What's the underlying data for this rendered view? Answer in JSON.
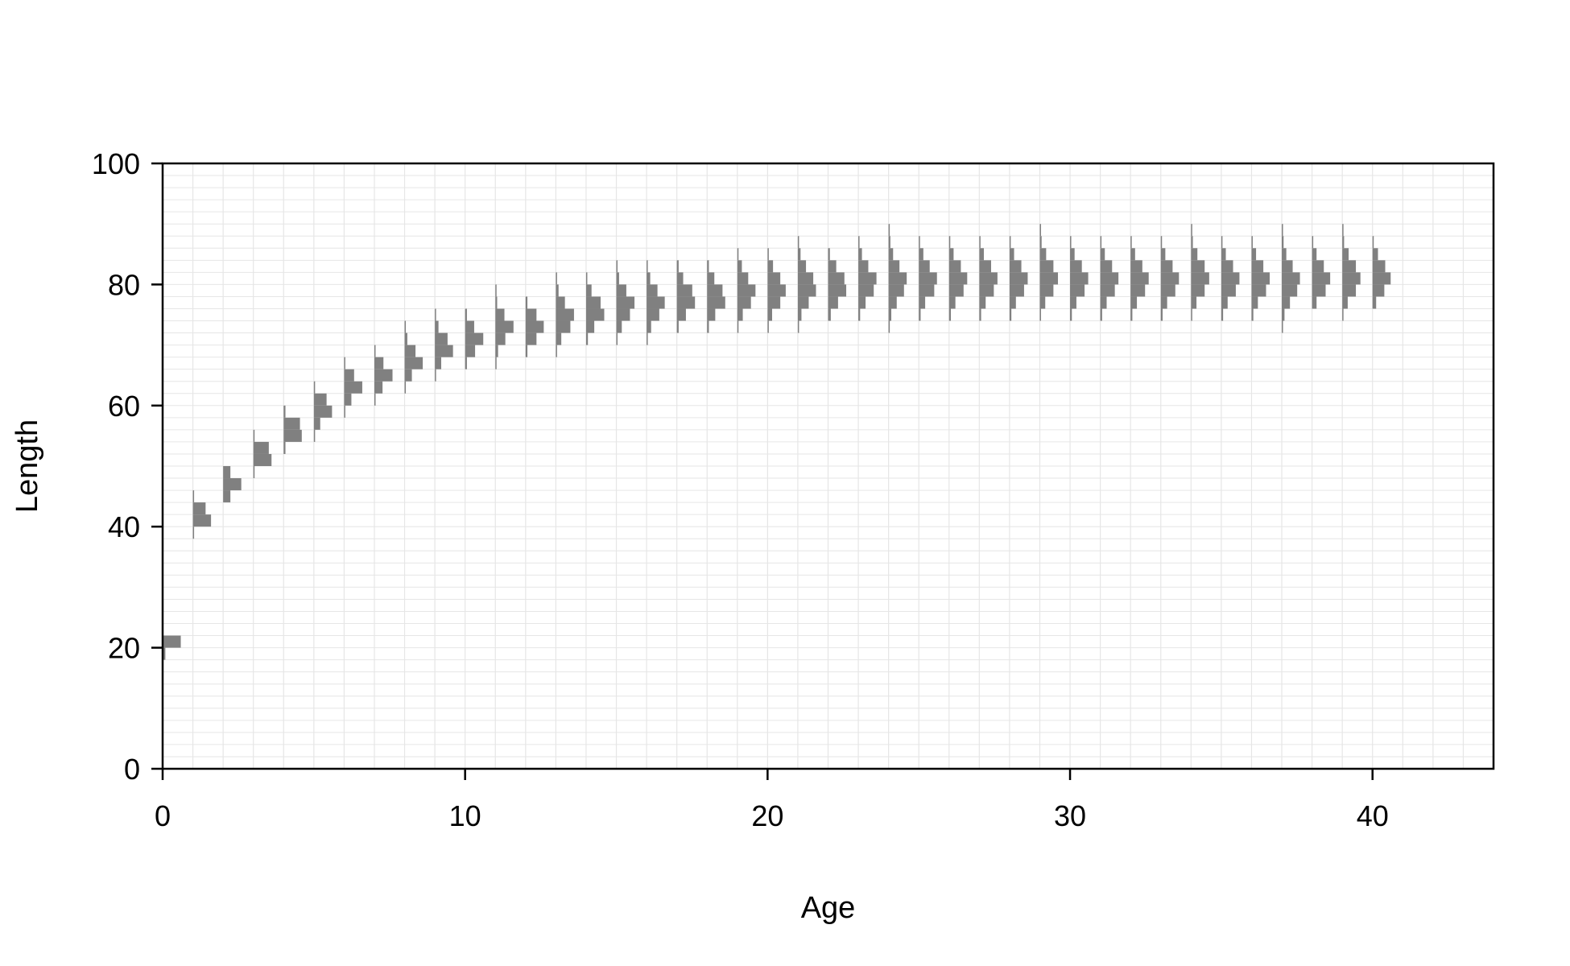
{
  "chart_data": {
    "type": "bar",
    "subtype": "length-at-age distributions (horizontal histograms per age)",
    "title": "",
    "xlabel": "Age",
    "ylabel": "Length",
    "xlim": [
      0,
      44
    ],
    "ylim": [
      0,
      100
    ],
    "x_ticks": [
      0,
      10,
      20,
      30,
      40
    ],
    "y_ticks": [
      0,
      20,
      40,
      60,
      80,
      100
    ],
    "grid": true,
    "legend": "none",
    "bar_color": "#808080",
    "grid_color": "#e6e6e6",
    "bin_width": 2,
    "peak_bar_age_width": 0.6,
    "ages": [
      {
        "age": 0,
        "lo": 18,
        "hi": 22,
        "probs": [
          0.15,
          1.0
        ]
      },
      {
        "age": 1,
        "lo": 38,
        "hi": 46,
        "probs": [
          0.05,
          1.0,
          0.7,
          0.05
        ]
      },
      {
        "age": 2,
        "lo": 44,
        "hi": 50,
        "probs": [
          0.4,
          1.0,
          0.4
        ]
      },
      {
        "age": 3,
        "lo": 48,
        "hi": 56,
        "probs": [
          0.05,
          1.0,
          0.85,
          0.05
        ]
      },
      {
        "age": 4,
        "lo": 52,
        "hi": 60,
        "probs": [
          0.1,
          1.0,
          0.9,
          0.1
        ]
      },
      {
        "age": 5,
        "lo": 54,
        "hi": 64,
        "probs": [
          0.05,
          0.35,
          1.0,
          0.7,
          0.05
        ]
      },
      {
        "age": 6,
        "lo": 58,
        "hi": 68,
        "probs": [
          0.05,
          0.4,
          1.0,
          0.55,
          0.05
        ]
      },
      {
        "age": 7,
        "lo": 60,
        "hi": 70,
        "probs": [
          0.05,
          0.45,
          1.0,
          0.5,
          0.05
        ]
      },
      {
        "age": 8,
        "lo": 62,
        "hi": 74,
        "probs": [
          0.05,
          0.4,
          1.0,
          0.6,
          0.15,
          0.05
        ]
      },
      {
        "age": 9,
        "lo": 64,
        "hi": 76,
        "probs": [
          0.05,
          0.35,
          1.0,
          0.7,
          0.2,
          0.05
        ]
      },
      {
        "age": 10,
        "lo": 66,
        "hi": 76,
        "probs": [
          0.1,
          0.55,
          1.0,
          0.5,
          0.1
        ]
      },
      {
        "age": 11,
        "lo": 66,
        "hi": 80,
        "probs": [
          0.05,
          0.15,
          0.55,
          1.0,
          0.5,
          0.1,
          0.05
        ]
      },
      {
        "age": 12,
        "lo": 68,
        "hi": 78,
        "probs": [
          0.1,
          0.6,
          1.0,
          0.6,
          0.1
        ]
      },
      {
        "age": 13,
        "lo": 68,
        "hi": 82,
        "probs": [
          0.05,
          0.3,
          0.8,
          1.0,
          0.5,
          0.15,
          0.05
        ]
      },
      {
        "age": 14,
        "lo": 70,
        "hi": 82,
        "probs": [
          0.1,
          0.45,
          1.0,
          0.8,
          0.3,
          0.05
        ]
      },
      {
        "age": 15,
        "lo": 70,
        "hi": 84,
        "probs": [
          0.05,
          0.3,
          0.75,
          1.0,
          0.55,
          0.15,
          0.05
        ]
      },
      {
        "age": 16,
        "lo": 70,
        "hi": 84,
        "probs": [
          0.05,
          0.25,
          0.7,
          1.0,
          0.6,
          0.2,
          0.05
        ]
      },
      {
        "age": 17,
        "lo": 72,
        "hi": 84,
        "probs": [
          0.1,
          0.5,
          1.0,
          0.85,
          0.35,
          0.1
        ]
      },
      {
        "age": 18,
        "lo": 72,
        "hi": 84,
        "probs": [
          0.1,
          0.45,
          1.0,
          0.85,
          0.4,
          0.1
        ]
      },
      {
        "age": 19,
        "lo": 72,
        "hi": 86,
        "probs": [
          0.05,
          0.3,
          0.75,
          1.0,
          0.6,
          0.25,
          0.05
        ]
      },
      {
        "age": 20,
        "lo": 72,
        "hi": 86,
        "probs": [
          0.05,
          0.25,
          0.7,
          1.0,
          0.7,
          0.3,
          0.05
        ]
      },
      {
        "age": 21,
        "lo": 72,
        "hi": 88,
        "probs": [
          0.05,
          0.2,
          0.6,
          1.0,
          0.85,
          0.45,
          0.15,
          0.05
        ]
      },
      {
        "age": 22,
        "lo": 74,
        "hi": 86,
        "probs": [
          0.15,
          0.55,
          1.0,
          0.9,
          0.45,
          0.1
        ]
      },
      {
        "age": 23,
        "lo": 74,
        "hi": 88,
        "probs": [
          0.1,
          0.4,
          0.85,
          1.0,
          0.55,
          0.2,
          0.05
        ]
      },
      {
        "age": 24,
        "lo": 72,
        "hi": 90,
        "probs": [
          0.05,
          0.15,
          0.45,
          0.85,
          1.0,
          0.6,
          0.25,
          0.1,
          0.05
        ]
      },
      {
        "age": 25,
        "lo": 74,
        "hi": 88,
        "probs": [
          0.1,
          0.35,
          0.85,
          1.0,
          0.6,
          0.25,
          0.05
        ]
      },
      {
        "age": 26,
        "lo": 74,
        "hi": 88,
        "probs": [
          0.1,
          0.35,
          0.8,
          1.0,
          0.65,
          0.25,
          0.05
        ]
      },
      {
        "age": 27,
        "lo": 74,
        "hi": 88,
        "probs": [
          0.1,
          0.35,
          0.8,
          1.0,
          0.65,
          0.25,
          0.05
        ]
      },
      {
        "age": 28,
        "lo": 74,
        "hi": 88,
        "probs": [
          0.1,
          0.35,
          0.8,
          1.0,
          0.65,
          0.25,
          0.05
        ]
      },
      {
        "age": 29,
        "lo": 74,
        "hi": 90,
        "probs": [
          0.05,
          0.3,
          0.75,
          1.0,
          0.75,
          0.35,
          0.1,
          0.05
        ]
      },
      {
        "age": 30,
        "lo": 74,
        "hi": 88,
        "probs": [
          0.1,
          0.35,
          0.8,
          1.0,
          0.65,
          0.25,
          0.05
        ]
      },
      {
        "age": 31,
        "lo": 74,
        "hi": 88,
        "probs": [
          0.1,
          0.35,
          0.8,
          1.0,
          0.65,
          0.25,
          0.05
        ]
      },
      {
        "age": 32,
        "lo": 74,
        "hi": 88,
        "probs": [
          0.1,
          0.35,
          0.8,
          1.0,
          0.65,
          0.25,
          0.05
        ]
      },
      {
        "age": 33,
        "lo": 74,
        "hi": 88,
        "probs": [
          0.1,
          0.35,
          0.8,
          1.0,
          0.65,
          0.25,
          0.05
        ]
      },
      {
        "age": 34,
        "lo": 74,
        "hi": 90,
        "probs": [
          0.05,
          0.3,
          0.75,
          1.0,
          0.75,
          0.35,
          0.1,
          0.05
        ]
      },
      {
        "age": 35,
        "lo": 74,
        "hi": 88,
        "probs": [
          0.1,
          0.35,
          0.8,
          1.0,
          0.65,
          0.25,
          0.05
        ]
      },
      {
        "age": 36,
        "lo": 74,
        "hi": 88,
        "probs": [
          0.1,
          0.35,
          0.8,
          1.0,
          0.65,
          0.25,
          0.05
        ]
      },
      {
        "age": 37,
        "lo": 72,
        "hi": 90,
        "probs": [
          0.05,
          0.15,
          0.45,
          0.85,
          1.0,
          0.6,
          0.25,
          0.1,
          0.05
        ]
      },
      {
        "age": 38,
        "lo": 76,
        "hi": 88,
        "probs": [
          0.25,
          0.75,
          1.0,
          0.65,
          0.25,
          0.05
        ]
      },
      {
        "age": 39,
        "lo": 74,
        "hi": 90,
        "probs": [
          0.05,
          0.3,
          0.75,
          1.0,
          0.75,
          0.35,
          0.1,
          0.05
        ]
      },
      {
        "age": 40,
        "lo": 76,
        "hi": 88,
        "probs": [
          0.2,
          0.65,
          1.0,
          0.7,
          0.3,
          0.05
        ]
      }
    ]
  }
}
